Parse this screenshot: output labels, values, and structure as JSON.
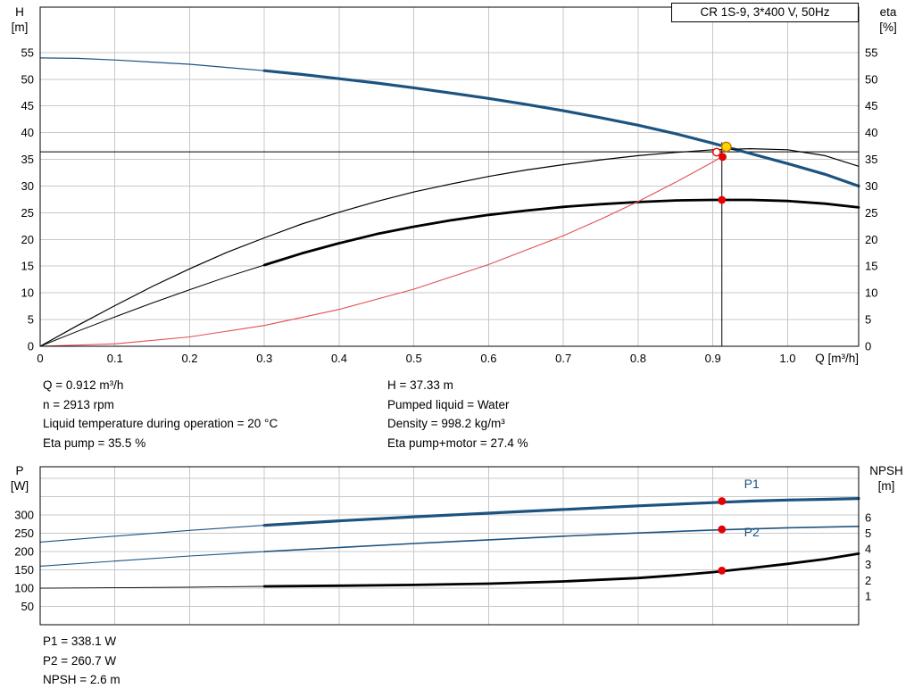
{
  "title_box": "CR 1S-9, 3*400 V, 50Hz",
  "axes": {
    "h": "H",
    "h_unit": "[m]",
    "eta": "eta",
    "eta_unit": "[%]",
    "p": "P",
    "p_unit": "[W]",
    "npsh": "NPSH",
    "npsh_unit": "[m]"
  },
  "info_top": {
    "left": [
      "Q = 0.912 m³/h",
      "n = 2913 rpm",
      "Liquid temperature during operation = 20 °C",
      "Eta pump = 35.5 %"
    ],
    "right": [
      "H = 37.33 m",
      "Pumped liquid = Water",
      "Density = 998.2 kg/m³",
      "Eta pump+motor = 27.4 %"
    ]
  },
  "info_bottom": [
    "P1 = 338.1 W",
    "P2 = 260.7 W",
    "NPSH = 2.6 m"
  ],
  "colors": {
    "blue": "#1c5380",
    "red": "#e60000",
    "red_curve": "#e05050",
    "yellow": "#ffd400",
    "yellow_ring": "#c87800",
    "grid": "#c8c8c8",
    "axis": "#000000"
  },
  "chart_data": [
    {
      "type": "line",
      "title": "CR 1S-9, 3*400 V, 50Hz",
      "xlabel": "Q [m³/h]",
      "ylabel_left": "H [m]",
      "ylabel_right": "eta [%]",
      "xlim": [
        0,
        1.095
      ],
      "ylim_left": [
        0,
        63.5
      ],
      "ylim_right": [
        0,
        63.5
      ],
      "xtick_values": [
        0,
        0.1,
        0.2,
        0.3,
        0.4,
        0.5,
        0.6,
        0.7,
        0.8,
        0.9,
        1.0
      ],
      "xtick_labels": [
        "0",
        "0.1",
        "0.2",
        "0.3",
        "0.4",
        "0.5",
        "0.6",
        "0.7",
        "0.8",
        "0.9",
        "1.0"
      ],
      "ytick_values_left": [
        0,
        5,
        10,
        15,
        20,
        25,
        30,
        35,
        40,
        45,
        50,
        55
      ],
      "ytick_values_right": [
        0,
        5,
        10,
        15,
        20,
        25,
        30,
        35,
        40,
        45,
        50,
        55
      ],
      "grid_y_values": [
        5,
        10,
        15,
        20,
        25,
        30,
        35,
        40,
        45,
        50,
        55
      ],
      "crosshair": {
        "q": 0.912,
        "h": 36.4,
        "v_top": 38.2
      },
      "series": [
        {
          "name": "head-curve-ext",
          "axis": "left",
          "color": "#1c5380",
          "width": 1.2,
          "points": [
            [
              0,
              54
            ],
            [
              0.05,
              53.9
            ],
            [
              0.1,
              53.6
            ],
            [
              0.15,
              53.2
            ],
            [
              0.2,
              52.8
            ],
            [
              0.25,
              52.2
            ],
            [
              0.3,
              51.6
            ]
          ]
        },
        {
          "name": "head-curve",
          "axis": "left",
          "color": "#1c5380",
          "width": 3.2,
          "points": [
            [
              0.3,
              51.6
            ],
            [
              0.35,
              50.9
            ],
            [
              0.4,
              50.1
            ],
            [
              0.45,
              49.3
            ],
            [
              0.5,
              48.4
            ],
            [
              0.55,
              47.4
            ],
            [
              0.6,
              46.4
            ],
            [
              0.65,
              45.3
            ],
            [
              0.7,
              44.1
            ],
            [
              0.75,
              42.8
            ],
            [
              0.8,
              41.4
            ],
            [
              0.85,
              39.8
            ],
            [
              0.9,
              38.0
            ],
            [
              0.95,
              36.1
            ],
            [
              1.0,
              34.2
            ],
            [
              1.05,
              32.2
            ],
            [
              1.095,
              30.0
            ]
          ]
        },
        {
          "name": "eta-pump-curve",
          "axis": "left",
          "color": "#000000",
          "width": 1.2,
          "points": [
            [
              0,
              0
            ],
            [
              0.05,
              3.9
            ],
            [
              0.1,
              7.6
            ],
            [
              0.15,
              11.2
            ],
            [
              0.2,
              14.5
            ],
            [
              0.25,
              17.6
            ],
            [
              0.3,
              20.3
            ],
            [
              0.35,
              22.9
            ],
            [
              0.4,
              25.1
            ],
            [
              0.45,
              27.1
            ],
            [
              0.5,
              28.9
            ],
            [
              0.55,
              30.4
            ],
            [
              0.6,
              31.8
            ],
            [
              0.65,
              33.0
            ],
            [
              0.7,
              34.0
            ],
            [
              0.75,
              34.9
            ],
            [
              0.8,
              35.7
            ],
            [
              0.85,
              36.3
            ],
            [
              0.9,
              36.8
            ],
            [
              0.95,
              37.0
            ],
            [
              1.0,
              36.8
            ],
            [
              1.05,
              35.7
            ],
            [
              1.095,
              33.7
            ]
          ]
        },
        {
          "name": "eta-pump-motor-ext",
          "axis": "left",
          "color": "#000000",
          "width": 1.0,
          "points": [
            [
              0,
              0
            ],
            [
              0.05,
              2.8
            ],
            [
              0.1,
              5.5
            ],
            [
              0.15,
              8.1
            ],
            [
              0.2,
              10.6
            ],
            [
              0.25,
              13.0
            ],
            [
              0.3,
              15.2
            ]
          ]
        },
        {
          "name": "eta-pump-motor-curve",
          "axis": "left",
          "color": "#000000",
          "width": 2.8,
          "points": [
            [
              0.3,
              15.2
            ],
            [
              0.35,
              17.4
            ],
            [
              0.4,
              19.3
            ],
            [
              0.45,
              21.0
            ],
            [
              0.5,
              22.4
            ],
            [
              0.55,
              23.6
            ],
            [
              0.6,
              24.6
            ],
            [
              0.65,
              25.4
            ],
            [
              0.7,
              26.1
            ],
            [
              0.75,
              26.6
            ],
            [
              0.8,
              27.0
            ],
            [
              0.85,
              27.3
            ],
            [
              0.9,
              27.4
            ],
            [
              0.95,
              27.4
            ],
            [
              1.0,
              27.2
            ],
            [
              1.05,
              26.7
            ],
            [
              1.095,
              26.0
            ]
          ]
        },
        {
          "name": "system-curve",
          "axis": "left",
          "color": "#e05050",
          "width": 1.1,
          "points": [
            [
              0,
              0
            ],
            [
              0.1,
              0.45
            ],
            [
              0.2,
              1.75
            ],
            [
              0.3,
              3.9
            ],
            [
              0.4,
              6.9
            ],
            [
              0.5,
              10.7
            ],
            [
              0.6,
              15.3
            ],
            [
              0.7,
              20.7
            ],
            [
              0.75,
              23.8
            ],
            [
              0.8,
              27.1
            ],
            [
              0.85,
              30.7
            ],
            [
              0.9,
              34.5
            ],
            [
              0.912,
              35.5
            ]
          ]
        }
      ],
      "markers": [
        {
          "q": 0.905,
          "v": 36.35,
          "axis": "left",
          "type": "open",
          "r": 4.2
        },
        {
          "q": 0.918,
          "v": 37.35,
          "axis": "left",
          "type": "duty",
          "r": 5.2
        },
        {
          "q": 0.913,
          "v": 35.45,
          "axis": "left",
          "type": "dot",
          "r": 4.4
        },
        {
          "q": 0.912,
          "v": 27.4,
          "axis": "left",
          "type": "dot",
          "r": 4.4
        }
      ],
      "curve_labels": []
    },
    {
      "type": "line",
      "title": "",
      "xlabel": "",
      "ylabel_left": "P [W]",
      "ylabel_right": "NPSH [m]",
      "xlim": [
        0,
        1.095
      ],
      "ylim_left": [
        0,
        432
      ],
      "ylim_right": [
        -0.824,
        9.233
      ],
      "xtick_values": [
        0,
        0.1,
        0.2,
        0.3,
        0.4,
        0.5,
        0.6,
        0.7,
        0.8,
        0.9,
        1.0
      ],
      "xtick_labels": null,
      "ytick_values_left": [
        50,
        100,
        150,
        200,
        250,
        300
      ],
      "ytick_values_right": [
        1,
        2,
        3,
        4,
        5,
        6
      ],
      "grid_y_values": [
        50,
        100,
        150,
        200,
        250,
        300,
        350,
        400
      ],
      "crosshair": null,
      "series": [
        {
          "name": "p1-curve-ext",
          "axis": "left",
          "color": "#1c5380",
          "width": 1.1,
          "points": [
            [
              0,
              226
            ],
            [
              0.1,
              242
            ],
            [
              0.2,
              258
            ],
            [
              0.3,
              272
            ]
          ]
        },
        {
          "name": "p1-curve",
          "axis": "left",
          "color": "#1c5380",
          "width": 3.2,
          "points": [
            [
              0.3,
              272
            ],
            [
              0.4,
              284
            ],
            [
              0.5,
              295
            ],
            [
              0.6,
              305
            ],
            [
              0.7,
              315
            ],
            [
              0.8,
              325
            ],
            [
              0.9,
              334
            ],
            [
              0.95,
              338
            ],
            [
              1.0,
              341
            ],
            [
              1.05,
              343
            ],
            [
              1.095,
              345
            ]
          ]
        },
        {
          "name": "p2-curve-ext",
          "axis": "left",
          "color": "#1c5380",
          "width": 1.1,
          "points": [
            [
              0,
              160
            ],
            [
              0.1,
              174
            ],
            [
              0.2,
              188
            ],
            [
              0.3,
              200
            ]
          ]
        },
        {
          "name": "p2-curve",
          "axis": "left",
          "color": "#1c5380",
          "width": 1.6,
          "points": [
            [
              0.3,
              200
            ],
            [
              0.4,
              211
            ],
            [
              0.5,
              222
            ],
            [
              0.6,
              232
            ],
            [
              0.7,
              242
            ],
            [
              0.8,
              251
            ],
            [
              0.9,
              259
            ],
            [
              1.0,
              265
            ],
            [
              1.095,
              269
            ]
          ]
        },
        {
          "name": "npsh-curve-ext",
          "axis": "right",
          "color": "#000000",
          "width": 0.9,
          "points": [
            [
              0,
              1.5
            ],
            [
              0.1,
              1.53
            ],
            [
              0.2,
              1.57
            ],
            [
              0.3,
              1.62
            ]
          ]
        },
        {
          "name": "npsh-curve",
          "axis": "right",
          "color": "#000000",
          "width": 2.8,
          "points": [
            [
              0.3,
              1.62
            ],
            [
              0.4,
              1.66
            ],
            [
              0.5,
              1.71
            ],
            [
              0.6,
              1.79
            ],
            [
              0.7,
              1.93
            ],
            [
              0.8,
              2.15
            ],
            [
              0.85,
              2.32
            ],
            [
              0.9,
              2.52
            ],
            [
              0.95,
              2.78
            ],
            [
              1.0,
              3.05
            ],
            [
              1.05,
              3.35
            ],
            [
              1.095,
              3.7
            ]
          ]
        }
      ],
      "markers": [
        {
          "q": 0.912,
          "v": 338.1,
          "axis": "left",
          "type": "dot",
          "r": 4.4
        },
        {
          "q": 0.912,
          "v": 260.7,
          "axis": "left",
          "type": "dot",
          "r": 4.4
        },
        {
          "q": 0.912,
          "v": 2.62,
          "axis": "right",
          "type": "dot",
          "r": 4.4
        }
      ],
      "curve_labels": [
        {
          "text": "P1",
          "q": 0.952,
          "v": 374,
          "axis": "left"
        },
        {
          "text": "P2",
          "q": 0.952,
          "v": 242,
          "axis": "left"
        }
      ]
    }
  ]
}
